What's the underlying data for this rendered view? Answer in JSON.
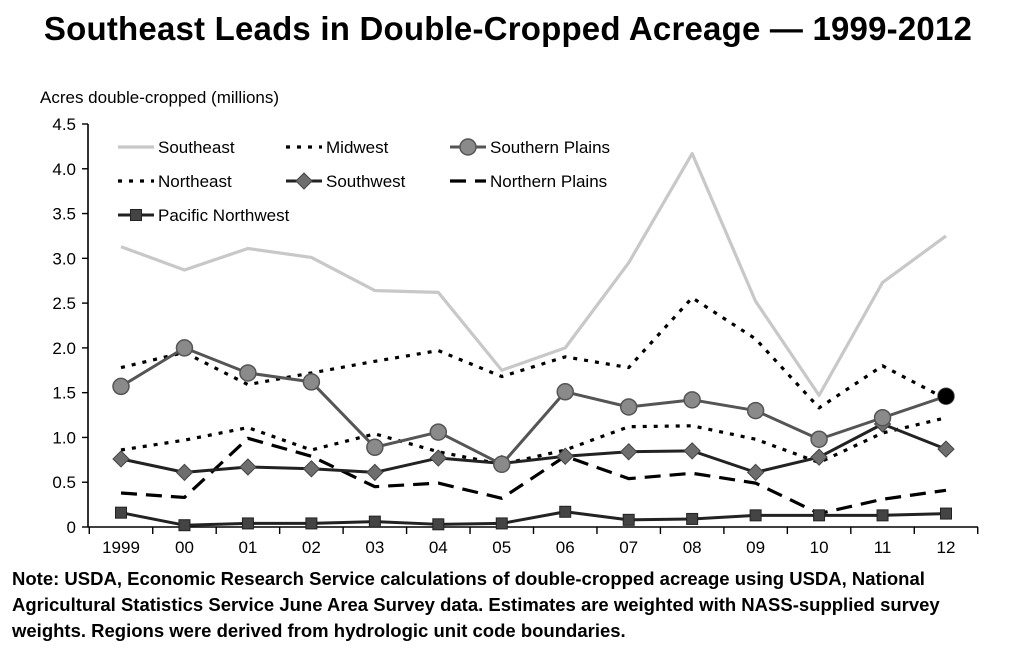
{
  "title": "Southeast Leads in Double-Cropped Acreage — 1999-2012",
  "note": "Note: USDA, Economic Research Service calculations of double-cropped acreage using USDA, National Agricultural Statistics Service June Area Survey data. Estimates are weighted with NASS-supplied survey weights. Regions were derived from hydrologic unit code boundaries.",
  "chart_data": {
    "type": "line",
    "ylabel": "Acres double-cropped (millions)",
    "xlabel": "",
    "ylim": [
      0,
      4.5
    ],
    "yticks": [
      "0",
      "0.5",
      "1.0",
      "1.5",
      "2.0",
      "2.5",
      "3.0",
      "3.5",
      "4.0",
      "4.5"
    ],
    "categories": [
      "1999",
      "00",
      "01",
      "02",
      "03",
      "04",
      "05",
      "06",
      "07",
      "08",
      "09",
      "10",
      "11",
      "12"
    ],
    "grid": false,
    "legend_position": "top-left",
    "series": [
      {
        "name": "Southeast",
        "style": "solid-light",
        "color": "#c8c8c8",
        "marker": "none",
        "values": [
          3.13,
          2.87,
          3.11,
          3.01,
          2.64,
          2.62,
          1.75,
          2.0,
          2.95,
          4.17,
          2.52,
          1.47,
          2.73,
          3.25
        ]
      },
      {
        "name": "Midwest",
        "style": "dotted",
        "color": "#000000",
        "marker": "none",
        "values": [
          1.78,
          1.95,
          1.59,
          1.72,
          1.85,
          1.97,
          1.68,
          1.9,
          1.78,
          2.56,
          2.1,
          1.33,
          1.8,
          1.43
        ]
      },
      {
        "name": "Southern Plains",
        "style": "solid",
        "color": "#555555",
        "marker": "circle",
        "values": [
          1.57,
          2.0,
          1.72,
          1.62,
          0.89,
          1.06,
          0.7,
          1.51,
          1.34,
          1.42,
          1.3,
          0.98,
          1.22,
          1.46
        ]
      },
      {
        "name": "Northeast",
        "style": "dotted",
        "color": "#000000",
        "marker": "none",
        "values": [
          0.86,
          0.97,
          1.11,
          0.86,
          1.04,
          0.84,
          0.7,
          0.86,
          1.12,
          1.13,
          0.98,
          0.72,
          1.05,
          1.22
        ]
      },
      {
        "name": "Southwest",
        "style": "solid",
        "color": "#222222",
        "marker": "diamond",
        "values": [
          0.76,
          0.61,
          0.67,
          0.65,
          0.61,
          0.77,
          0.71,
          0.79,
          0.84,
          0.85,
          0.61,
          0.78,
          1.15,
          0.87
        ]
      },
      {
        "name": "Northern Plains",
        "style": "dashed",
        "color": "#000000",
        "marker": "none",
        "values": [
          0.38,
          0.33,
          0.99,
          0.79,
          0.45,
          0.49,
          0.32,
          0.79,
          0.54,
          0.6,
          0.49,
          0.15,
          0.31,
          0.41
        ]
      },
      {
        "name": "Pacific Northwest",
        "style": "solid",
        "color": "#222222",
        "marker": "square",
        "values": [
          0.16,
          0.02,
          0.04,
          0.04,
          0.06,
          0.03,
          0.04,
          0.17,
          0.08,
          0.09,
          0.13,
          0.13,
          0.13,
          0.15
        ]
      }
    ],
    "annotations": [
      {
        "type": "filled-circle-marker",
        "category": "12",
        "value": 1.46,
        "color": "#000000"
      }
    ]
  }
}
